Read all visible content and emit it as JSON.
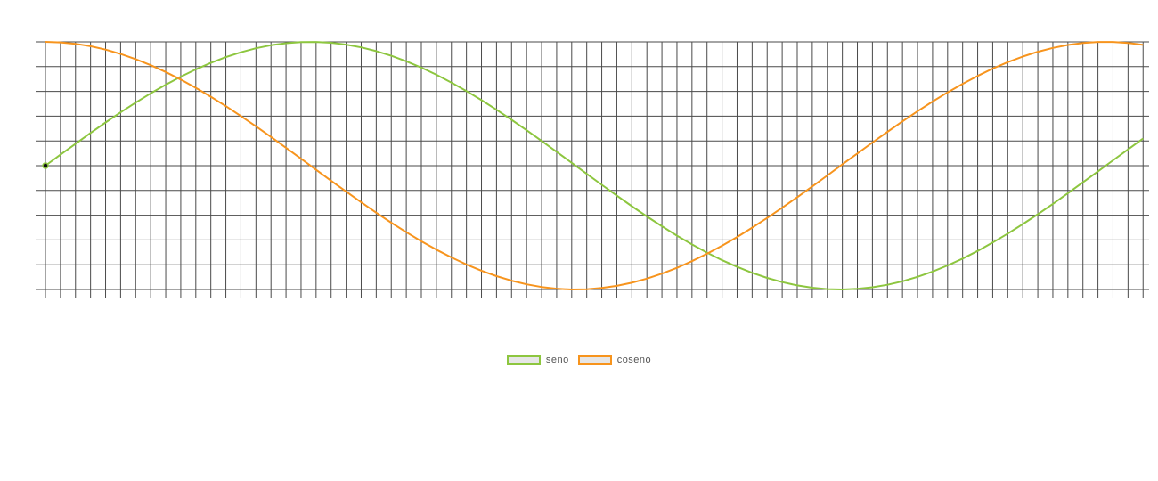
{
  "chart_data": {
    "type": "line",
    "title": "",
    "xlabel": "",
    "ylabel": "",
    "grid": true,
    "legend_placement": "bottom-center",
    "x_range": [
      0,
      6.54
    ],
    "ylim": [
      -1,
      1
    ],
    "x_tick_step": 0.0891,
    "y_tick_step": 0.2,
    "x_step": 0.0891,
    "series": [
      {
        "name": "seno",
        "function": "sin",
        "color": "#8dc63f",
        "marker_at_start": true
      },
      {
        "name": "coseno",
        "function": "cos",
        "color": "#f7941d",
        "marker_at_start": false
      }
    ]
  },
  "legend": {
    "items": [
      {
        "label": "seno",
        "color": "#8dc63f"
      },
      {
        "label": "coseno",
        "color": "#f7941d"
      }
    ]
  }
}
